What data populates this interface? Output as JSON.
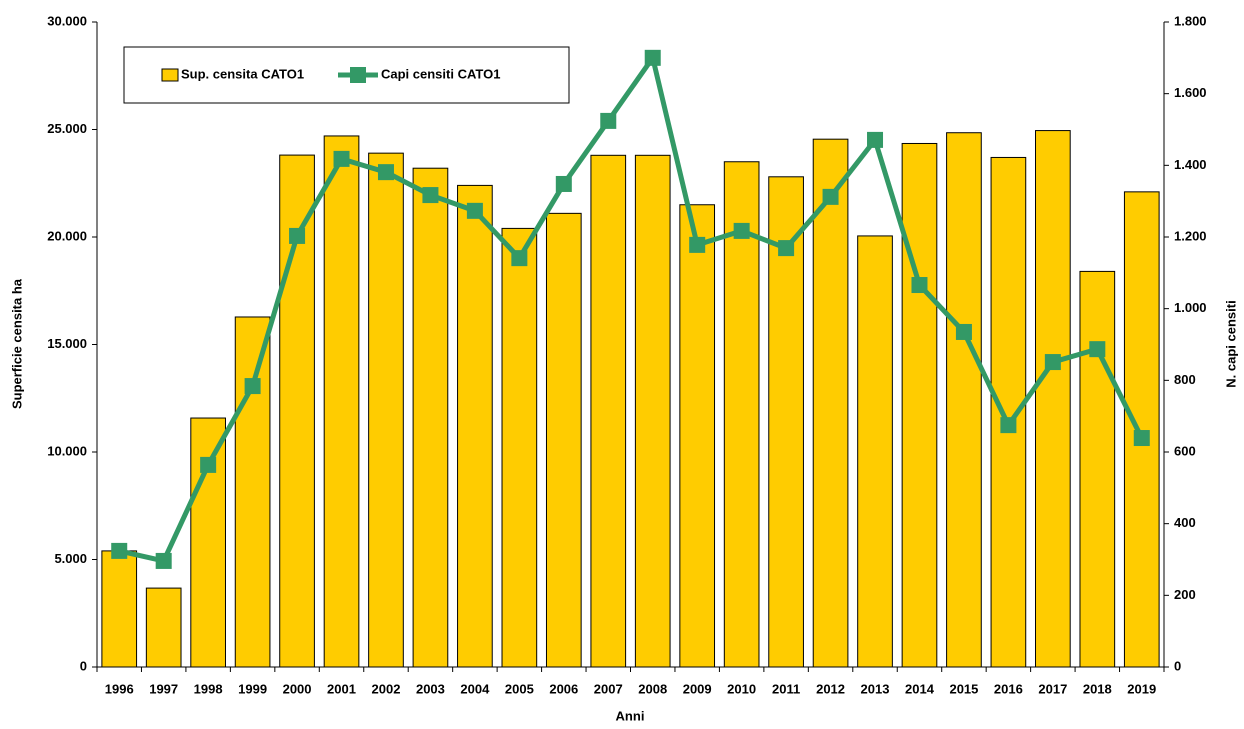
{
  "chart_data": {
    "type": "bar",
    "x_label": "Anni",
    "y_label": "Superficie censita ha",
    "y2_label": "N. capi censiti",
    "categories": [
      "1996",
      "1997",
      "1998",
      "1999",
      "2000",
      "2001",
      "2002",
      "2003",
      "2004",
      "2005",
      "2006",
      "2007",
      "2008",
      "2009",
      "2010",
      "2011",
      "2012",
      "2013",
      "2014",
      "2015",
      "2016",
      "2017",
      "2018",
      "2019"
    ],
    "series": [
      {
        "name": "Sup. censita CATO1",
        "type": "bar",
        "color": "#FFCC00",
        "values": [
          5400,
          3670,
          11580,
          16280,
          23810,
          24700,
          23900,
          23200,
          22400,
          20400,
          21100,
          23800,
          23800,
          21500,
          23500,
          22800,
          24550,
          20050,
          24350,
          24850,
          23700,
          24950,
          18400,
          22100
        ]
      },
      {
        "name": "Capi censiti CATO1",
        "type": "line",
        "axis": "y2",
        "color": "#339966",
        "values": [
          324,
          296,
          564,
          784,
          1203,
          1418,
          1381,
          1317,
          1273,
          1141,
          1348,
          1524,
          1700,
          1178,
          1217,
          1169,
          1312,
          1471,
          1066,
          935,
          675,
          851,
          887,
          639
        ]
      }
    ],
    "ylim": [
      0,
      30000
    ],
    "yticks": [
      0,
      {
        "value": 5000,
        "label": "5.000"
      },
      {
        "value": 10000,
        "label": "10.000"
      },
      {
        "value": 15000,
        "label": "15.000"
      },
      {
        "value": 20000,
        "label": "20.000"
      },
      {
        "value": 25000,
        "label": "25.000"
      },
      {
        "value": 30000,
        "label": "30.000"
      }
    ],
    "y2lim": [
      0,
      1800
    ],
    "y2ticks": [
      0,
      200,
      400,
      600,
      800,
      {
        "value": 1000,
        "label": "1.000"
      },
      {
        "value": 1200,
        "label": "1.200"
      },
      {
        "value": 1400,
        "label": "1.400"
      },
      {
        "value": 1600,
        "label": "1.600"
      },
      {
        "value": 1800,
        "label": "1.800"
      }
    ],
    "grid": false,
    "legend": "top-left"
  }
}
